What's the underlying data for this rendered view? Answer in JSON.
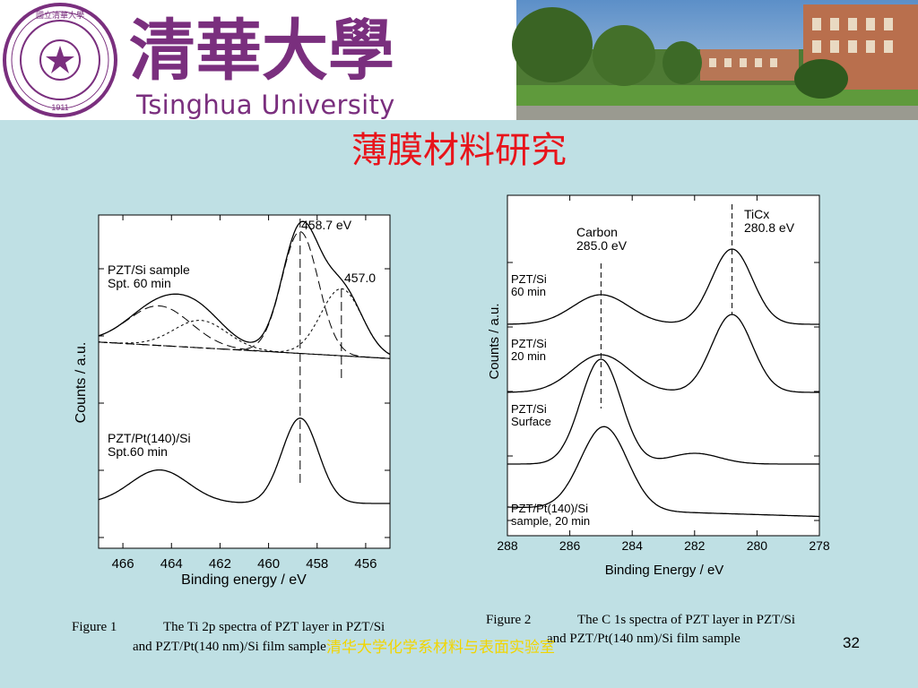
{
  "header": {
    "university_name": "Tsinghua University",
    "calligraphy_text": "清華大學",
    "seal_year": "1911",
    "seal_text": "國立清華大學",
    "colors": {
      "brand_purple": "#7a2f7e",
      "title_red": "#e8141b",
      "footer_yellow": "#f1d500"
    }
  },
  "slide": {
    "title": "薄膜材料研究",
    "footer_lab": "清华大学化学系材料与表面实验室",
    "page_number": "32"
  },
  "figure1": {
    "caption_label": "Figure 1",
    "caption_line1": "The Ti 2p spectra of PZT layer in PZT/Si",
    "caption_line2": "and PZT/Pt(140 nm)/Si film sample",
    "chart_data": {
      "type": "line",
      "xlabel": "Binding energy / eV",
      "ylabel": "Counts / a.u.",
      "x_ticks": [
        "466",
        "464",
        "462",
        "460",
        "458",
        "456"
      ],
      "xlim": [
        467,
        455
      ],
      "x_reversed": true,
      "annotations": [
        "458.7 eV",
        "457.0"
      ],
      "peak_markers": [
        458.7,
        457.0
      ],
      "series": [
        {
          "name": "PZT/Si sample\nSpt. 60 min",
          "peaks": [
            {
              "center": 464.5,
              "height": 0.26
            },
            {
              "center": 462.8,
              "height": 0.18
            },
            {
              "center": 458.7,
              "height": 0.8
            },
            {
              "center": 457.0,
              "height": 0.44
            }
          ],
          "baseline": [
            0.08,
            -0.1
          ]
        },
        {
          "name": "PZT/Pt(140)/Si\nSpt.60 min",
          "peaks": [
            {
              "center": 464.5,
              "height": 0.22
            },
            {
              "center": 458.7,
              "height": 0.56
            }
          ],
          "baseline": [
            0,
            0
          ]
        }
      ]
    }
  },
  "figure2": {
    "caption_label": "Figure 2",
    "caption_line1": "The C 1s spectra of PZT layer in PZT/Si",
    "caption_line2": "and PZT/Pt(140 nm)/Si film sample",
    "chart_data": {
      "type": "line",
      "xlabel": "Binding Energy / eV",
      "ylabel": "Counts / a.u.",
      "x_ticks": [
        "288",
        "286",
        "284",
        "282",
        "280",
        "278"
      ],
      "xlim": [
        288,
        278
      ],
      "x_reversed": true,
      "annotations": [
        "Carbon\n285.0 eV",
        "TiCx\n280.8 eV"
      ],
      "peak_markers": [
        285.0,
        280.8
      ],
      "series": [
        {
          "name": "PZT/Si\n60 min",
          "peaks": [
            {
              "center": 285.0,
              "height": 0.22
            },
            {
              "center": 280.8,
              "height": 0.56
            }
          ]
        },
        {
          "name": "PZT/Si\n20 min",
          "peaks": [
            {
              "center": 285.0,
              "height": 0.28
            },
            {
              "center": 280.8,
              "height": 0.58
            }
          ]
        },
        {
          "name": "PZT/Si\nSurface",
          "peaks": [
            {
              "center": 285.0,
              "height": 0.78
            },
            {
              "center": 282.0,
              "height": 0.08
            }
          ]
        },
        {
          "name": "PZT/Pt(140)/Si\nsample, 20 min",
          "peaks": [
            {
              "center": 284.9,
              "height": 0.62
            }
          ]
        }
      ]
    }
  }
}
